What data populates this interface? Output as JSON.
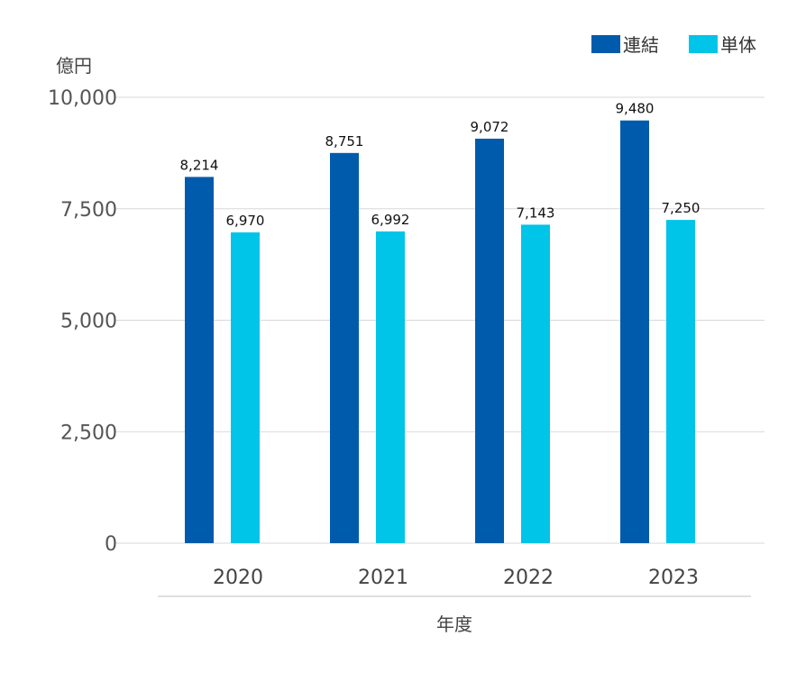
{
  "chart_data": {
    "type": "bar",
    "categories": [
      "2020",
      "2021",
      "2022",
      "2023"
    ],
    "series": [
      {
        "name": "連結",
        "values": [
          8214,
          8751,
          9072,
          9480
        ],
        "color": "#005bac"
      },
      {
        "name": "単体",
        "values": [
          6970,
          6992,
          7143,
          7250
        ],
        "color": "#00c4e8"
      }
    ],
    "data_labels": [
      [
        "8,214",
        "8,751",
        "9,072",
        "9,480"
      ],
      [
        "6,970",
        "6,992",
        "7,143",
        "7,250"
      ]
    ],
    "y_unit": "億円",
    "xlabel": "年度",
    "ylim": [
      0,
      10000
    ],
    "y_ticks": [
      0,
      2500,
      5000,
      7500,
      10000
    ],
    "y_tick_labels": [
      "0",
      "2,500",
      "5,000",
      "7,500",
      "10,000"
    ],
    "grid": true,
    "legend_position": "top-right"
  }
}
